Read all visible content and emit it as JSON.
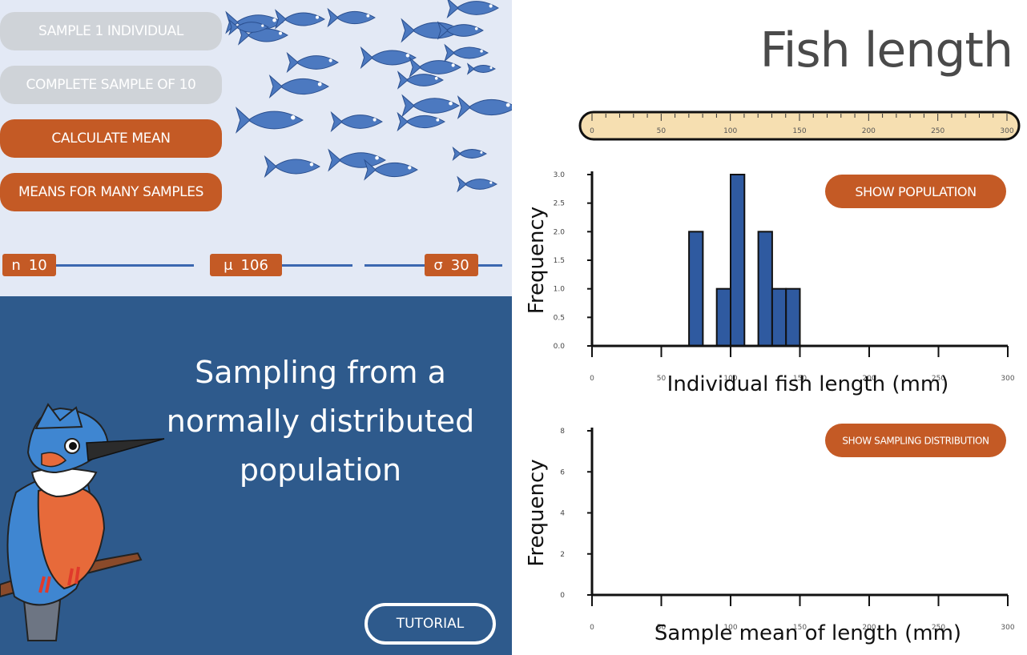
{
  "title": "Fish length",
  "controls": {
    "sample_one": "SAMPLE 1 INDIVIDUAL",
    "complete_sample": "COMPLETE SAMPLE OF 10",
    "calculate_mean": "CALCULATE MEAN",
    "many_samples": "MEANS FOR MANY SAMPLES"
  },
  "params": {
    "n_symbol": "n",
    "n_value": "10",
    "mu_symbol": "μ",
    "mu_value": "106",
    "sigma_symbol": "σ",
    "sigma_value": "30"
  },
  "panel": {
    "headline": "Sampling from a normally distributed population",
    "tutorial": "TUTORIAL"
  },
  "ruler": {
    "ticks": [
      "0",
      "50",
      "100",
      "150",
      "200",
      "250",
      "300"
    ]
  },
  "colors": {
    "accent": "#c45a25",
    "bar": "#2f5aa0",
    "panel_bg": "#2e5a8c",
    "top_bg": "#e3e9f5",
    "button_disabled": "#cfd3d8"
  },
  "icons": [
    "fish-icon",
    "kingfisher-illustration",
    "ruler-icon"
  ],
  "chart_data": [
    {
      "type": "bar",
      "button": "SHOW POPULATION",
      "xlabel": "Individual fish length (mm)",
      "ylabel": "Frequency",
      "xlim": [
        0,
        300
      ],
      "ylim": [
        0,
        3
      ],
      "xticks": [
        "0",
        "50",
        "100",
        "150",
        "200",
        "250",
        "300"
      ],
      "yticks": [
        "0.0",
        "0.5",
        "1.0",
        "1.5",
        "2.0",
        "2.5",
        "3.0"
      ],
      "bins": [
        {
          "start": 70,
          "end": 80,
          "value": 2
        },
        {
          "start": 90,
          "end": 100,
          "value": 1
        },
        {
          "start": 100,
          "end": 110,
          "value": 3
        },
        {
          "start": 120,
          "end": 130,
          "value": 2
        },
        {
          "start": 130,
          "end": 140,
          "value": 1
        },
        {
          "start": 140,
          "end": 150,
          "value": 1
        }
      ]
    },
    {
      "type": "bar",
      "button": "SHOW SAMPLING DISTRIBUTION",
      "xlabel": "Sample mean of length (mm)",
      "ylabel": "Frequency",
      "xlim": [
        0,
        300
      ],
      "ylim": [
        0,
        8
      ],
      "xticks": [
        "0",
        "50",
        "100",
        "150",
        "200",
        "250",
        "300"
      ],
      "yticks": [
        "0",
        "2",
        "4",
        "6",
        "8"
      ],
      "bins": []
    }
  ]
}
